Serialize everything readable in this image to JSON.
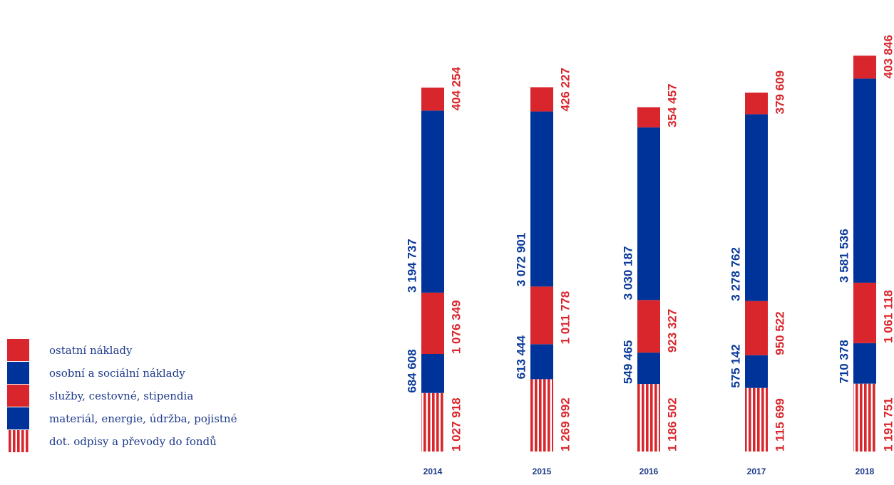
{
  "colors": {
    "red": "#d9262d",
    "blue": "#003399",
    "stripe_red": "#d9262d",
    "stripe_white": "#ffffff",
    "year_text": "#1d3a8a",
    "legend_text": "#1d3a8a"
  },
  "chart_data": {
    "type": "bar",
    "stacked": true,
    "categories": [
      "2014",
      "2015",
      "2016",
      "2017",
      "2018"
    ],
    "series": [
      {
        "name": "dot. odpisy a převody do fondů",
        "color": "#d9262d",
        "pattern": "stripes",
        "label_side": "right",
        "values": [
          1027918,
          1269992,
          1186502,
          1115699,
          1191751
        ],
        "labels": [
          "1 027 918",
          "1 269 992",
          "1 186 502",
          "1 115 699",
          "1 191 751"
        ]
      },
      {
        "name": "materiál, energie, údržba, pojistné",
        "color": "#003399",
        "pattern": "solid",
        "label_side": "left",
        "values": [
          684608,
          613444,
          549465,
          575142,
          710378
        ],
        "labels": [
          "684 608",
          "613 444",
          "549 465",
          "575 142",
          "710 378"
        ]
      },
      {
        "name": "služby, cestovné, stipendia",
        "color": "#d9262d",
        "pattern": "solid",
        "label_side": "right",
        "values": [
          1076349,
          1011778,
          923327,
          950522,
          1061118
        ],
        "labels": [
          "1 076 349",
          "1 011 778",
          "923 327",
          "950 522",
          "1 061 118"
        ]
      },
      {
        "name": "osobní a sociální náklady",
        "color": "#003399",
        "pattern": "solid",
        "label_side": "left",
        "values": [
          3194737,
          3072901,
          3030187,
          3278762,
          3581536
        ],
        "labels": [
          "3 194 737",
          "3 072 901",
          "3 030 187",
          "3 278 762",
          "3 581 536"
        ]
      },
      {
        "name": "ostatní náklady",
        "color": "#d9262d",
        "pattern": "solid",
        "label_side": "right",
        "values": [
          404254,
          426227,
          354457,
          379609,
          403846
        ],
        "labels": [
          "404 254",
          "426 227",
          "354 457",
          "379 609",
          "403 846"
        ]
      }
    ],
    "legend": {
      "placement": "bottom-left",
      "entries": [
        {
          "label": "ostatní náklady",
          "color": "#d9262d",
          "pattern": "solid"
        },
        {
          "label": "osobní a sociální náklady",
          "color": "#003399",
          "pattern": "solid"
        },
        {
          "label": "služby, cestovné, stipendia",
          "color": "#d9262d",
          "pattern": "solid"
        },
        {
          "label": "materiál, energie, údržba, pojistné",
          "color": "#003399",
          "pattern": "solid"
        },
        {
          "label": "dot. odpisy a převody do fondů",
          "color": "#d9262d",
          "pattern": "stripes"
        }
      ]
    },
    "value_label_orientation": "vertical",
    "grid": false,
    "axes_visible": false
  }
}
